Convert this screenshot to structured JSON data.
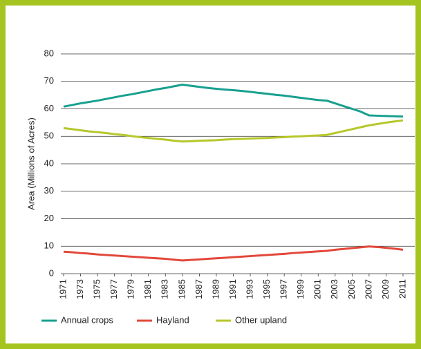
{
  "chart_data": {
    "type": "line",
    "y_label": "Area (Millions of Acres)",
    "x": [
      1971,
      1972,
      1973,
      1974,
      1975,
      1976,
      1977,
      1978,
      1979,
      1980,
      1981,
      1982,
      1983,
      1984,
      1985,
      1986,
      1987,
      1988,
      1989,
      1990,
      1991,
      1992,
      1993,
      1994,
      1995,
      1996,
      1997,
      1998,
      1999,
      2000,
      2001,
      2002,
      2003,
      2004,
      2005,
      2006,
      2007,
      2008,
      2009,
      2010,
      2011
    ],
    "xlim": [
      1971,
      2011
    ],
    "xticks": [
      1971,
      1973,
      1975,
      1977,
      1979,
      1981,
      1983,
      1985,
      1987,
      1989,
      1991,
      1993,
      1995,
      1997,
      1999,
      2001,
      2003,
      2005,
      2007,
      2009,
      2011
    ],
    "ylim": [
      0,
      80
    ],
    "yticks": [
      0,
      10,
      20,
      30,
      40,
      50,
      60,
      70,
      80
    ],
    "grid": true,
    "legend": "bottom",
    "series": [
      {
        "name": "Annual crops",
        "color": "#17a08f",
        "values": [
          60.8,
          61.4,
          62,
          62.5,
          63,
          63.6,
          64.2,
          64.8,
          65.3,
          65.9,
          66.5,
          67.1,
          67.6,
          68.2,
          68.8,
          68.4,
          68,
          67.6,
          67.3,
          67,
          66.8,
          66.5,
          66.2,
          65.8,
          65.5,
          65.1,
          64.8,
          64.4,
          64,
          63.6,
          63.2,
          63,
          62,
          61,
          60,
          59,
          57.6,
          57.5,
          57.4,
          57.3,
          57.2
        ]
      },
      {
        "name": "Hayland",
        "color": "#e2483a",
        "values": [
          8,
          7.8,
          7.5,
          7.3,
          7,
          6.8,
          6.6,
          6.4,
          6.2,
          6,
          5.8,
          5.6,
          5.4,
          5.1,
          4.8,
          5,
          5.2,
          5.4,
          5.6,
          5.8,
          6,
          6.2,
          6.4,
          6.6,
          6.8,
          7,
          7.2,
          7.5,
          7.7,
          7.9,
          8.1,
          8.3,
          8.7,
          9,
          9.3,
          9.6,
          9.9,
          9.7,
          9.4,
          9.1,
          8.7
        ]
      },
      {
        "name": "Other upland",
        "color": "#b6c72a",
        "values": [
          53,
          52.6,
          52.2,
          51.8,
          51.5,
          51.2,
          50.8,
          50.5,
          50.1,
          49.7,
          49.4,
          49.1,
          48.8,
          48.4,
          48.1,
          48.2,
          48.4,
          48.5,
          48.6,
          48.8,
          49,
          49.1,
          49.2,
          49.3,
          49.4,
          49.6,
          49.7,
          49.9,
          50,
          50.2,
          50.3,
          50.5,
          51.2,
          51.9,
          52.6,
          53.3,
          54,
          54.5,
          55,
          55.4,
          55.8
        ]
      }
    ]
  }
}
